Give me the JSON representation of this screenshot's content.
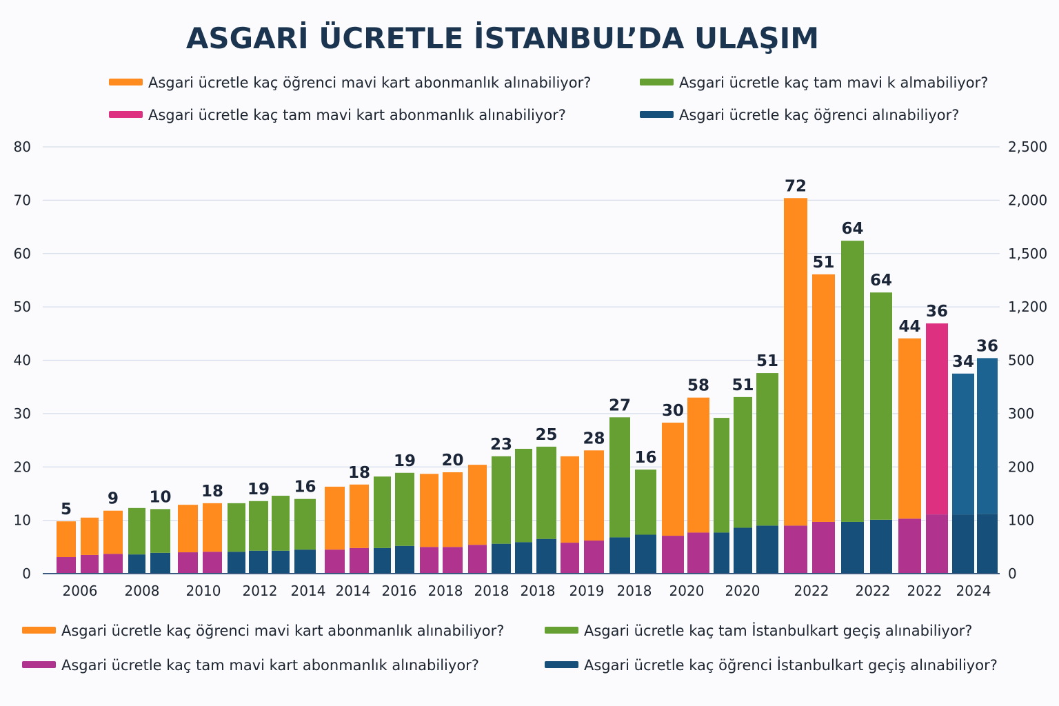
{
  "chart_data": {
    "type": "bar",
    "stacked": true,
    "title": "ASGARİ ÜCRETLE İSTANBUL’DA ULAŞIM",
    "legend_top": [
      {
        "label": "Asgari ücretle kaç öğrenci mavi kart abonmanlık alınabiliyor?",
        "color": "orange"
      },
      {
        "label": "Asgari ücretle kaç tam mavi k almabiliyor?",
        "color": "green"
      },
      {
        "label": "Asgari ücretle kaç tam mavi kart abonmanlık alınabiliyor?",
        "color": "pink"
      },
      {
        "label": "Asgari ücretle kaç öğrenci alınabiliyor?",
        "color": "blue"
      }
    ],
    "legend_bottom": [
      {
        "label": "Asgari ücretle kaç öğrenci mavi kart abonmanlık alınabiliyor?",
        "color": "orange"
      },
      {
        "label": "Asgari ücretle kaç tam İstanbulkart geçiş alınabiliyor?",
        "color": "green"
      },
      {
        "label": "Asgari ücretle kaç tam mavi kart abonmanlık alınabiliyor?",
        "color": "purple"
      },
      {
        "label": "Asgari ücretle kaç öğrenci İstanbulkart geçiş alınabiliyor?",
        "color": "blue"
      }
    ],
    "colors": {
      "orange": "#ff8a1e",
      "green": "#66a033",
      "purple": "#b0338e",
      "pink": "#dd3080",
      "blue": "#154f7a",
      "lightblue": "#1d6391",
      "title": "#1b3550"
    },
    "y_left": {
      "ticks": [
        "0",
        "10",
        "20",
        "30",
        "40",
        "50",
        "60",
        "70",
        "80"
      ],
      "range": [
        0,
        80
      ]
    },
    "y_right": {
      "ticks": [
        "0",
        "100",
        "200",
        "300",
        "500",
        "1,200",
        "1,500",
        "2,000",
        "2,500"
      ]
    },
    "grid": true,
    "x_tick_labels": [
      "2006",
      "2008",
      "2010",
      "2012",
      "2014",
      "2014",
      "2016",
      "2018",
      "2018",
      "2018",
      "2019",
      "2018",
      "2020",
      "2020",
      "2022",
      "2022",
      "2022",
      "2024"
    ],
    "bars": [
      {
        "total": 9.8,
        "base": 3.1,
        "top": "orange",
        "bottom": "purple",
        "label": "5"
      },
      {
        "total": 10.5,
        "base": 3.5,
        "top": "orange",
        "bottom": "purple",
        "label": ""
      },
      {
        "total": 11.8,
        "base": 3.7,
        "top": "orange",
        "bottom": "purple",
        "label": "9"
      },
      {
        "total": 12.3,
        "base": 3.6,
        "top": "green",
        "bottom": "blue",
        "label": ""
      },
      {
        "total": 12.1,
        "base": 3.9,
        "top": "green",
        "bottom": "blue",
        "label": "10"
      },
      {
        "total": 12.9,
        "base": 4.0,
        "top": "orange",
        "bottom": "purple",
        "label": ""
      },
      {
        "total": 13.2,
        "base": 4.1,
        "top": "orange",
        "bottom": "purple",
        "label": "18"
      },
      {
        "total": 13.2,
        "base": 4.1,
        "top": "green",
        "bottom": "blue",
        "label": ""
      },
      {
        "total": 13.6,
        "base": 4.3,
        "top": "green",
        "bottom": "blue",
        "label": "19"
      },
      {
        "total": 14.6,
        "base": 4.3,
        "top": "green",
        "bottom": "blue",
        "label": ""
      },
      {
        "total": 14.0,
        "base": 4.5,
        "top": "green",
        "bottom": "blue",
        "label": "16"
      },
      {
        "total": 16.3,
        "base": 4.5,
        "top": "orange",
        "bottom": "purple",
        "label": ""
      },
      {
        "total": 16.7,
        "base": 4.8,
        "top": "orange",
        "bottom": "purple",
        "label": "18"
      },
      {
        "total": 18.2,
        "base": 4.8,
        "top": "green",
        "bottom": "blue",
        "label": ""
      },
      {
        "total": 18.9,
        "base": 5.2,
        "top": "green",
        "bottom": "blue",
        "label": "19"
      },
      {
        "total": 18.7,
        "base": 5.0,
        "top": "orange",
        "bottom": "purple",
        "label": ""
      },
      {
        "total": 19.0,
        "base": 5.0,
        "top": "orange",
        "bottom": "purple",
        "label": "20"
      },
      {
        "total": 20.4,
        "base": 5.4,
        "top": "orange",
        "bottom": "purple",
        "label": ""
      },
      {
        "total": 22.0,
        "base": 5.6,
        "top": "green",
        "bottom": "blue",
        "label": "23"
      },
      {
        "total": 23.4,
        "base": 5.9,
        "top": "green",
        "bottom": "blue",
        "label": ""
      },
      {
        "total": 23.8,
        "base": 6.5,
        "top": "green",
        "bottom": "blue",
        "label": "25"
      },
      {
        "total": 22.0,
        "base": 5.8,
        "top": "orange",
        "bottom": "purple",
        "label": ""
      },
      {
        "total": 23.1,
        "base": 6.2,
        "top": "orange",
        "bottom": "purple",
        "label": "28"
      },
      {
        "total": 29.3,
        "base": 6.8,
        "top": "green",
        "bottom": "blue",
        "label": "27"
      },
      {
        "total": 19.5,
        "base": 7.3,
        "top": "green",
        "bottom": "blue",
        "label": "16"
      },
      {
        "total": 28.3,
        "base": 7.1,
        "top": "orange",
        "bottom": "purple",
        "label": "30"
      },
      {
        "total": 33.0,
        "base": 7.7,
        "top": "orange",
        "bottom": "purple",
        "label": "58"
      },
      {
        "total": 29.2,
        "base": 7.7,
        "top": "green",
        "bottom": "blue",
        "label": ""
      },
      {
        "total": 33.1,
        "base": 8.6,
        "top": "green",
        "bottom": "blue",
        "label": "51"
      },
      {
        "total": 37.6,
        "base": 9.0,
        "top": "green",
        "bottom": "blue",
        "label": "51"
      },
      {
        "total": 70.4,
        "base": 9.0,
        "top": "orange",
        "bottom": "purple",
        "label": "72"
      },
      {
        "total": 56.1,
        "base": 9.7,
        "top": "orange",
        "bottom": "purple",
        "label": "51"
      },
      {
        "total": 62.4,
        "base": 9.7,
        "top": "green",
        "bottom": "blue",
        "label": "64"
      },
      {
        "total": 52.7,
        "base": 10.1,
        "top": "green",
        "bottom": "blue",
        "label": "64"
      },
      {
        "total": 44.1,
        "base": 10.3,
        "top": "orange",
        "bottom": "purple",
        "label": "44"
      },
      {
        "total": 46.9,
        "base": 11.1,
        "top": "pink",
        "bottom": "purple",
        "label": "36"
      },
      {
        "total": 37.5,
        "base": 11.1,
        "top": "lightblue",
        "bottom": "blue",
        "label": "34"
      },
      {
        "total": 40.4,
        "base": 11.2,
        "top": "lightblue",
        "bottom": "blue",
        "label": "36"
      }
    ]
  }
}
